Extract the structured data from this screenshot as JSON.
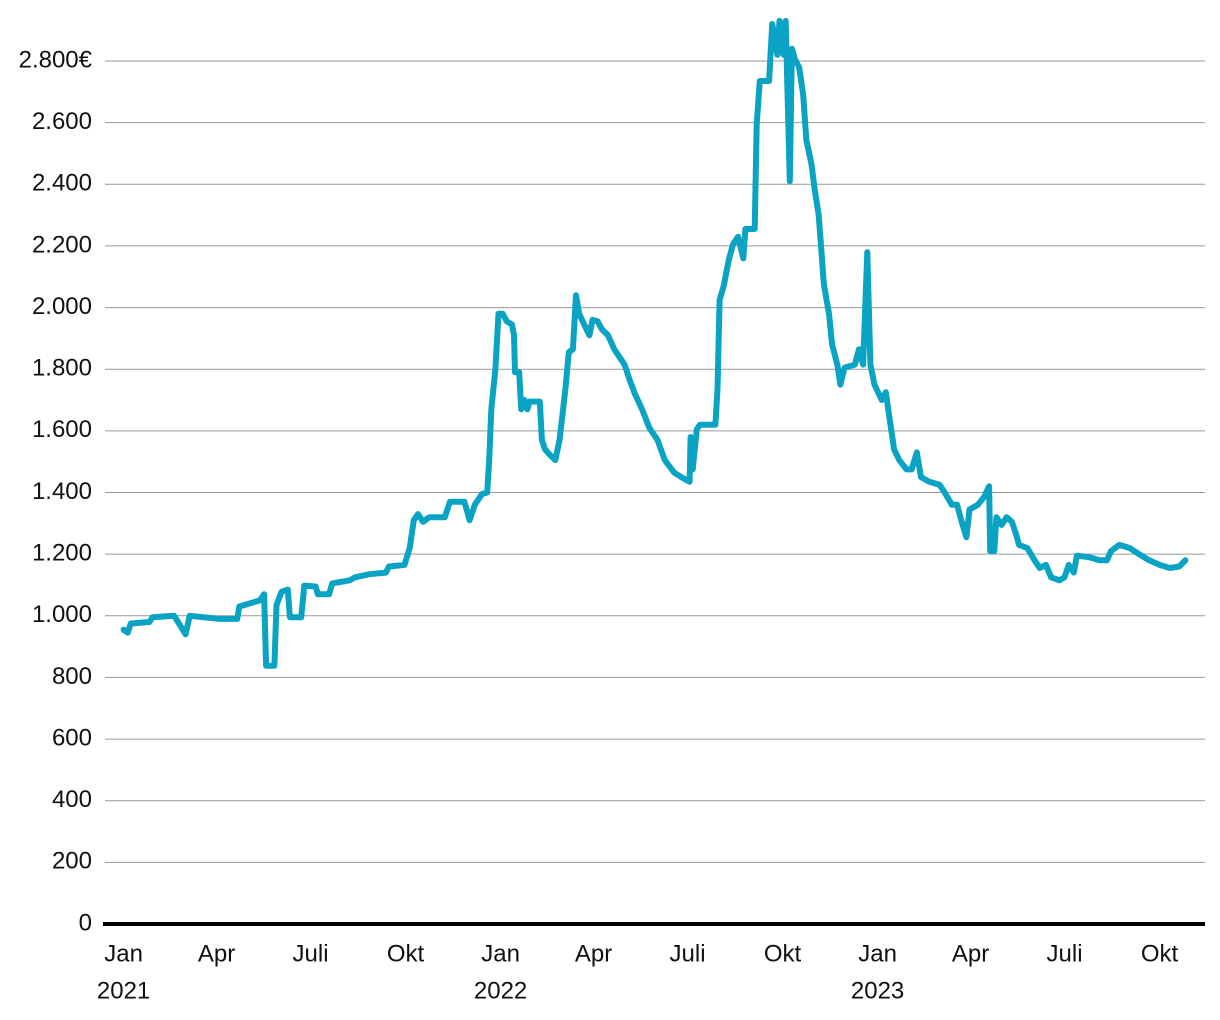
{
  "chart_data": {
    "type": "line",
    "xlim": [
      "2020-12-14",
      "2023-11-14"
    ],
    "xticks": [
      {
        "value": "2021-01-01",
        "label": "Jan",
        "year": "2021"
      },
      {
        "value": "2021-04-01",
        "label": "Apr"
      },
      {
        "value": "2021-07-01",
        "label": "Juli"
      },
      {
        "value": "2021-10-01",
        "label": "Okt"
      },
      {
        "value": "2022-01-01",
        "label": "Jan",
        "year": "2022"
      },
      {
        "value": "2022-04-01",
        "label": "Apr"
      },
      {
        "value": "2022-07-01",
        "label": "Juli"
      },
      {
        "value": "2022-10-01",
        "label": "Okt"
      },
      {
        "value": "2023-01-01",
        "label": "Jan",
        "year": "2023"
      },
      {
        "value": "2023-04-01",
        "label": "Apr"
      },
      {
        "value": "2023-07-01",
        "label": "Juli"
      },
      {
        "value": "2023-10-01",
        "label": "Okt"
      }
    ],
    "ylim": [
      0,
      2800
    ],
    "yticks": [
      0,
      200,
      400,
      600,
      800,
      {
        "value": 1000,
        "label": "1.000"
      },
      {
        "value": 1200,
        "label": "1.200"
      },
      {
        "value": 1400,
        "label": "1.400"
      },
      {
        "value": 1600,
        "label": "1.600"
      },
      {
        "value": 1800,
        "label": "1.800"
      },
      {
        "value": 2000,
        "label": "2.000"
      },
      {
        "value": 2200,
        "label": "2.200"
      },
      {
        "value": 2400,
        "label": "2.400"
      },
      {
        "value": 2600,
        "label": "2.600"
      },
      {
        "value": 2800,
        "label": "2.800€"
      }
    ],
    "grid": true,
    "series": [
      {
        "color": "#0aa3c4",
        "x": [
          "2021-01-01",
          "2021-01-05",
          "2021-01-08",
          "2021-01-26",
          "2021-01-29",
          "2021-02-19",
          "2021-03-02",
          "2021-03-06",
          "2021-04-04",
          "2021-04-21",
          "2021-04-23",
          "2021-05-13",
          "2021-05-17",
          "2021-05-19",
          "2021-05-27",
          "2021-05-29",
          "2021-06-03",
          "2021-06-09",
          "2021-06-11",
          "2021-06-22",
          "2021-06-25",
          "2021-07-06",
          "2021-07-08",
          "2021-07-19",
          "2021-07-22",
          "2021-08-08",
          "2021-08-13",
          "2021-08-27",
          "2021-09-12",
          "2021-09-15",
          "2021-09-30",
          "2021-10-05",
          "2021-10-09",
          "2021-10-13",
          "2021-10-18",
          "2021-10-24",
          "2021-11-08",
          "2021-11-13",
          "2021-11-27",
          "2021-12-02",
          "2021-12-07",
          "2021-12-14",
          "2021-12-19",
          "2021-12-21",
          "2021-12-23",
          "2021-12-27",
          "2021-12-30",
          "2022-01-03",
          "2022-01-07",
          "2022-01-12",
          "2022-01-14",
          "2022-01-15",
          "2022-01-19",
          "2022-01-21",
          "2022-01-24",
          "2022-01-27",
          "2022-01-29",
          "2022-02-08",
          "2022-02-10",
          "2022-02-13",
          "2022-02-17",
          "2022-02-23",
          "2022-02-27",
          "2022-03-02",
          "2022-03-05",
          "2022-03-08",
          "2022-03-12",
          "2022-03-15",
          "2022-03-18",
          "2022-03-23",
          "2022-03-28",
          "2022-03-31",
          "2022-04-05",
          "2022-04-09",
          "2022-04-15",
          "2022-04-21",
          "2022-05-01",
          "2022-05-06",
          "2022-05-11",
          "2022-05-18",
          "2022-05-25",
          "2022-06-02",
          "2022-06-09",
          "2022-06-18",
          "2022-06-25",
          "2022-07-03",
          "2022-07-04",
          "2022-07-06",
          "2022-07-10",
          "2022-07-13",
          "2022-07-28",
          "2022-07-30",
          "2022-08-01",
          "2022-08-05",
          "2022-08-10",
          "2022-08-14",
          "2022-08-19",
          "2022-08-24",
          "2022-08-26",
          "2022-09-04",
          "2022-09-06",
          "2022-09-09",
          "2022-09-18",
          "2022-09-21",
          "2022-09-26",
          "2022-09-28",
          "2022-10-02",
          "2022-10-04",
          "2022-10-06",
          "2022-10-08",
          "2022-10-10",
          "2022-10-13",
          "2022-10-17",
          "2022-10-21",
          "2022-10-24",
          "2022-10-29",
          "2022-11-01",
          "2022-11-05",
          "2022-11-10",
          "2022-11-15",
          "2022-11-18",
          "2022-11-23",
          "2022-11-26",
          "2022-11-30",
          "2022-12-10",
          "2022-12-14",
          "2022-12-18",
          "2022-12-22",
          "2022-12-25",
          "2022-12-29",
          "2023-01-05",
          "2023-01-09",
          "2023-01-12",
          "2023-01-17",
          "2023-01-22",
          "2023-01-29",
          "2023-02-03",
          "2023-02-08",
          "2023-02-12",
          "2023-02-20",
          "2023-03-02",
          "2023-03-07",
          "2023-03-14",
          "2023-03-19",
          "2023-03-23",
          "2023-03-28",
          "2023-03-31",
          "2023-04-08",
          "2023-04-14",
          "2023-04-19",
          "2023-04-20",
          "2023-04-24",
          "2023-04-26",
          "2023-05-01",
          "2023-05-06",
          "2023-05-11",
          "2023-05-15",
          "2023-05-18",
          "2023-05-26",
          "2023-06-02",
          "2023-06-07",
          "2023-06-13",
          "2023-06-18",
          "2023-06-26",
          "2023-07-01",
          "2023-07-05",
          "2023-07-10",
          "2023-07-13",
          "2023-07-25",
          "2023-08-04",
          "2023-08-11",
          "2023-08-15",
          "2023-08-23",
          "2023-09-02",
          "2023-09-11",
          "2023-09-21",
          "2023-10-01",
          "2023-10-11",
          "2023-10-20",
          "2023-10-26"
        ],
        "values": [
          955,
          945,
          975,
          980,
          995,
          1000,
          940,
          1000,
          990,
          990,
          1030,
          1050,
          1070,
          838,
          838,
          1035,
          1078,
          1085,
          995,
          995,
          1098,
          1095,
          1070,
          1070,
          1105,
          1115,
          1125,
          1135,
          1140,
          1160,
          1165,
          1220,
          1310,
          1330,
          1305,
          1320,
          1320,
          1370,
          1370,
          1310,
          1360,
          1395,
          1400,
          1505,
          1670,
          1800,
          1980,
          1980,
          1955,
          1945,
          1910,
          1790,
          1790,
          1670,
          1700,
          1670,
          1695,
          1695,
          1570,
          1540,
          1525,
          1505,
          1570,
          1655,
          1745,
          1855,
          1865,
          2040,
          1980,
          1945,
          1910,
          1960,
          1955,
          1930,
          1910,
          1865,
          1815,
          1765,
          1720,
          1670,
          1610,
          1570,
          1505,
          1465,
          1450,
          1435,
          1580,
          1475,
          1605,
          1620,
          1620,
          1735,
          2025,
          2070,
          2155,
          2205,
          2230,
          2160,
          2255,
          2255,
          2595,
          2735,
          2735,
          2920,
          2820,
          2930,
          2820,
          2930,
          2675,
          2410,
          2840,
          2805,
          2780,
          2690,
          2545,
          2465,
          2385,
          2300,
          2075,
          1980,
          1880,
          1815,
          1750,
          1805,
          1815,
          1865,
          1815,
          2180,
          1815,
          1750,
          1700,
          1725,
          1655,
          1540,
          1505,
          1475,
          1475,
          1530,
          1450,
          1435,
          1425,
          1400,
          1360,
          1360,
          1310,
          1255,
          1345,
          1360,
          1385,
          1420,
          1210,
          1210,
          1320,
          1295,
          1320,
          1305,
          1265,
          1230,
          1220,
          1180,
          1155,
          1165,
          1125,
          1115,
          1125,
          1165,
          1140,
          1195,
          1190,
          1180,
          1180,
          1210,
          1230,
          1220,
          1200,
          1180,
          1165,
          1155,
          1160,
          1180
        ]
      }
    ]
  }
}
